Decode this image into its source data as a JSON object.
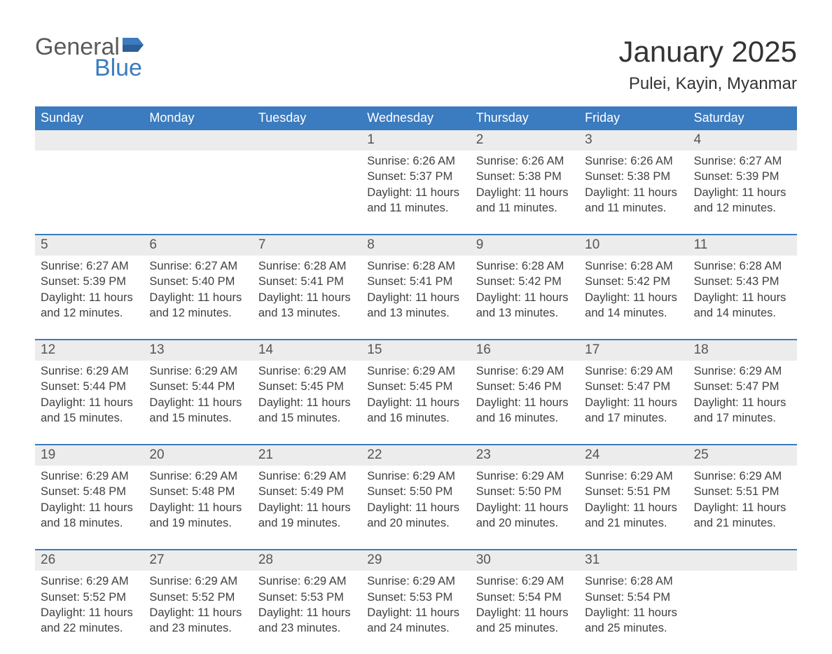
{
  "brand": {
    "text_general": "General",
    "text_blue": "Blue",
    "flag_color": "#3b7bbf",
    "general_color": "#5a5a5a",
    "blue_color": "#3b7bbf"
  },
  "header": {
    "month_title": "January 2025",
    "location": "Pulei, Kayin, Myanmar"
  },
  "colors": {
    "header_bg": "#3b7bbf",
    "header_text": "#ffffff",
    "daynum_bg": "#ececec",
    "row_border": "#3b7bbf",
    "body_text": "#404040",
    "background": "#ffffff"
  },
  "layout": {
    "columns": 7,
    "weeks": 5,
    "daynum_fontsize": 19,
    "content_fontsize": 16.5,
    "weekday_fontsize": 18,
    "title_fontsize": 42,
    "location_fontsize": 24
  },
  "weekdays": [
    "Sunday",
    "Monday",
    "Tuesday",
    "Wednesday",
    "Thursday",
    "Friday",
    "Saturday"
  ],
  "weeks": [
    [
      {
        "day": "",
        "sunrise": "",
        "sunset": "",
        "daylight": ""
      },
      {
        "day": "",
        "sunrise": "",
        "sunset": "",
        "daylight": ""
      },
      {
        "day": "",
        "sunrise": "",
        "sunset": "",
        "daylight": ""
      },
      {
        "day": "1",
        "sunrise": "Sunrise: 6:26 AM",
        "sunset": "Sunset: 5:37 PM",
        "daylight": "Daylight: 11 hours and 11 minutes."
      },
      {
        "day": "2",
        "sunrise": "Sunrise: 6:26 AM",
        "sunset": "Sunset: 5:38 PM",
        "daylight": "Daylight: 11 hours and 11 minutes."
      },
      {
        "day": "3",
        "sunrise": "Sunrise: 6:26 AM",
        "sunset": "Sunset: 5:38 PM",
        "daylight": "Daylight: 11 hours and 11 minutes."
      },
      {
        "day": "4",
        "sunrise": "Sunrise: 6:27 AM",
        "sunset": "Sunset: 5:39 PM",
        "daylight": "Daylight: 11 hours and 12 minutes."
      }
    ],
    [
      {
        "day": "5",
        "sunrise": "Sunrise: 6:27 AM",
        "sunset": "Sunset: 5:39 PM",
        "daylight": "Daylight: 11 hours and 12 minutes."
      },
      {
        "day": "6",
        "sunrise": "Sunrise: 6:27 AM",
        "sunset": "Sunset: 5:40 PM",
        "daylight": "Daylight: 11 hours and 12 minutes."
      },
      {
        "day": "7",
        "sunrise": "Sunrise: 6:28 AM",
        "sunset": "Sunset: 5:41 PM",
        "daylight": "Daylight: 11 hours and 13 minutes."
      },
      {
        "day": "8",
        "sunrise": "Sunrise: 6:28 AM",
        "sunset": "Sunset: 5:41 PM",
        "daylight": "Daylight: 11 hours and 13 minutes."
      },
      {
        "day": "9",
        "sunrise": "Sunrise: 6:28 AM",
        "sunset": "Sunset: 5:42 PM",
        "daylight": "Daylight: 11 hours and 13 minutes."
      },
      {
        "day": "10",
        "sunrise": "Sunrise: 6:28 AM",
        "sunset": "Sunset: 5:42 PM",
        "daylight": "Daylight: 11 hours and 14 minutes."
      },
      {
        "day": "11",
        "sunrise": "Sunrise: 6:28 AM",
        "sunset": "Sunset: 5:43 PM",
        "daylight": "Daylight: 11 hours and 14 minutes."
      }
    ],
    [
      {
        "day": "12",
        "sunrise": "Sunrise: 6:29 AM",
        "sunset": "Sunset: 5:44 PM",
        "daylight": "Daylight: 11 hours and 15 minutes."
      },
      {
        "day": "13",
        "sunrise": "Sunrise: 6:29 AM",
        "sunset": "Sunset: 5:44 PM",
        "daylight": "Daylight: 11 hours and 15 minutes."
      },
      {
        "day": "14",
        "sunrise": "Sunrise: 6:29 AM",
        "sunset": "Sunset: 5:45 PM",
        "daylight": "Daylight: 11 hours and 15 minutes."
      },
      {
        "day": "15",
        "sunrise": "Sunrise: 6:29 AM",
        "sunset": "Sunset: 5:45 PM",
        "daylight": "Daylight: 11 hours and 16 minutes."
      },
      {
        "day": "16",
        "sunrise": "Sunrise: 6:29 AM",
        "sunset": "Sunset: 5:46 PM",
        "daylight": "Daylight: 11 hours and 16 minutes."
      },
      {
        "day": "17",
        "sunrise": "Sunrise: 6:29 AM",
        "sunset": "Sunset: 5:47 PM",
        "daylight": "Daylight: 11 hours and 17 minutes."
      },
      {
        "day": "18",
        "sunrise": "Sunrise: 6:29 AM",
        "sunset": "Sunset: 5:47 PM",
        "daylight": "Daylight: 11 hours and 17 minutes."
      }
    ],
    [
      {
        "day": "19",
        "sunrise": "Sunrise: 6:29 AM",
        "sunset": "Sunset: 5:48 PM",
        "daylight": "Daylight: 11 hours and 18 minutes."
      },
      {
        "day": "20",
        "sunrise": "Sunrise: 6:29 AM",
        "sunset": "Sunset: 5:48 PM",
        "daylight": "Daylight: 11 hours and 19 minutes."
      },
      {
        "day": "21",
        "sunrise": "Sunrise: 6:29 AM",
        "sunset": "Sunset: 5:49 PM",
        "daylight": "Daylight: 11 hours and 19 minutes."
      },
      {
        "day": "22",
        "sunrise": "Sunrise: 6:29 AM",
        "sunset": "Sunset: 5:50 PM",
        "daylight": "Daylight: 11 hours and 20 minutes."
      },
      {
        "day": "23",
        "sunrise": "Sunrise: 6:29 AM",
        "sunset": "Sunset: 5:50 PM",
        "daylight": "Daylight: 11 hours and 20 minutes."
      },
      {
        "day": "24",
        "sunrise": "Sunrise: 6:29 AM",
        "sunset": "Sunset: 5:51 PM",
        "daylight": "Daylight: 11 hours and 21 minutes."
      },
      {
        "day": "25",
        "sunrise": "Sunrise: 6:29 AM",
        "sunset": "Sunset: 5:51 PM",
        "daylight": "Daylight: 11 hours and 21 minutes."
      }
    ],
    [
      {
        "day": "26",
        "sunrise": "Sunrise: 6:29 AM",
        "sunset": "Sunset: 5:52 PM",
        "daylight": "Daylight: 11 hours and 22 minutes."
      },
      {
        "day": "27",
        "sunrise": "Sunrise: 6:29 AM",
        "sunset": "Sunset: 5:52 PM",
        "daylight": "Daylight: 11 hours and 23 minutes."
      },
      {
        "day": "28",
        "sunrise": "Sunrise: 6:29 AM",
        "sunset": "Sunset: 5:53 PM",
        "daylight": "Daylight: 11 hours and 23 minutes."
      },
      {
        "day": "29",
        "sunrise": "Sunrise: 6:29 AM",
        "sunset": "Sunset: 5:53 PM",
        "daylight": "Daylight: 11 hours and 24 minutes."
      },
      {
        "day": "30",
        "sunrise": "Sunrise: 6:29 AM",
        "sunset": "Sunset: 5:54 PM",
        "daylight": "Daylight: 11 hours and 25 minutes."
      },
      {
        "day": "31",
        "sunrise": "Sunrise: 6:28 AM",
        "sunset": "Sunset: 5:54 PM",
        "daylight": "Daylight: 11 hours and 25 minutes."
      },
      {
        "day": "",
        "sunrise": "",
        "sunset": "",
        "daylight": ""
      }
    ]
  ]
}
